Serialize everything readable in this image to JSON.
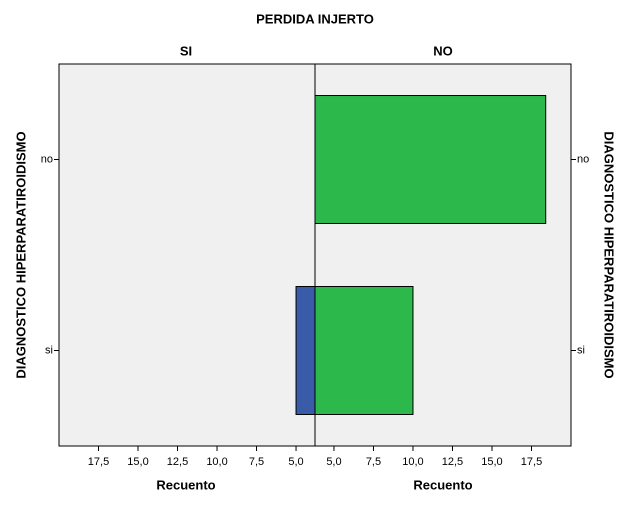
{
  "chart_data": {
    "type": "pyramid",
    "title": "PERDIDA INJERTO",
    "panels": [
      "SI",
      "NO"
    ],
    "categories": [
      "no",
      "si"
    ],
    "ylabel": "DIAGNOSTICO HIPERPARATIROIDISMO",
    "xlabel": "Recuento",
    "xlim": [
      3.8,
      20
    ],
    "xticks": [
      {
        "value": 5,
        "label": "5,0"
      },
      {
        "value": 7.5,
        "label": "7,5"
      },
      {
        "value": 10,
        "label": "10,0"
      },
      {
        "value": 12.5,
        "label": "12,5"
      },
      {
        "value": 15,
        "label": "15,0"
      },
      {
        "value": 17.5,
        "label": "17,5"
      }
    ],
    "series": [
      {
        "name": "SI",
        "color": "#3a5ba8",
        "values": [
          null,
          5
        ]
      },
      {
        "name": "NO",
        "color": "#2db84b",
        "values": [
          18.4,
          10
        ]
      }
    ]
  }
}
